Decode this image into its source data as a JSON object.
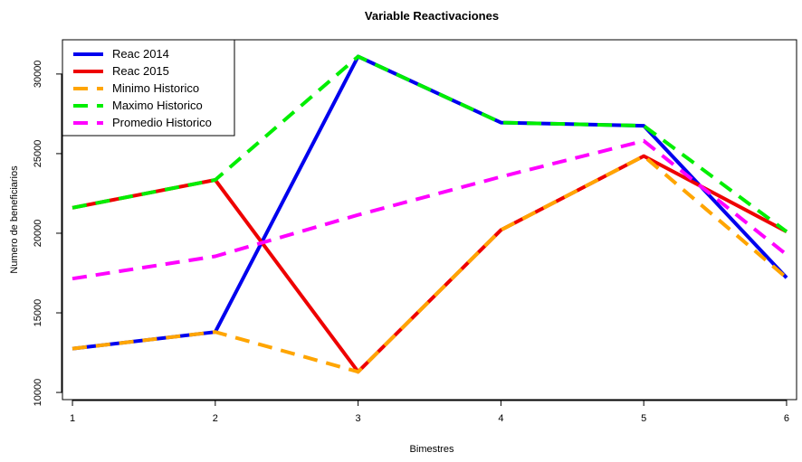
{
  "chart_data": {
    "type": "line",
    "title": "Variable Reactivaciones",
    "xlabel": "Bimestres",
    "ylabel": "Numero de beneficiarios",
    "x": [
      1,
      2,
      3,
      4,
      5,
      6
    ],
    "xlim": [
      0.93,
      6.07
    ],
    "ylim": [
      9550,
      32150
    ],
    "xticks": [
      1,
      2,
      3,
      4,
      5,
      6
    ],
    "yticks": [
      10000,
      15000,
      20000,
      25000,
      30000
    ],
    "grid": false,
    "legend_position": "top-left",
    "series": [
      {
        "name": "Reac 2014",
        "color": "#0000ee",
        "dash": "solid",
        "values": [
          12750,
          13800,
          31100,
          26950,
          26750,
          17200
        ]
      },
      {
        "name": "Reac 2015",
        "color": "#ee0000",
        "dash": "solid",
        "values": [
          21600,
          23350,
          11300,
          20200,
          24850,
          20100
        ]
      },
      {
        "name": "Minimo Historico",
        "color": "#ffa500",
        "dash": "dashed",
        "values": [
          12750,
          13800,
          11300,
          20200,
          24850,
          17200
        ]
      },
      {
        "name": "Maximo Historico",
        "color": "#00ee00",
        "dash": "dashed",
        "values": [
          21600,
          23350,
          31100,
          26950,
          26750,
          20100
        ]
      },
      {
        "name": "Promedio Historico",
        "color": "#ff00ff",
        "dash": "dashed",
        "values": [
          17150,
          18550,
          21150,
          23550,
          25800,
          18650
        ]
      }
    ]
  }
}
